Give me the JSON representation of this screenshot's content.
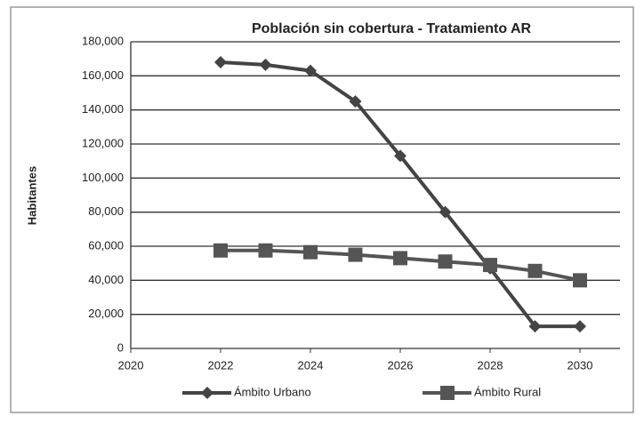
{
  "chart_data": {
    "type": "line",
    "title": "Población sin cobertura - Tratamiento AR",
    "ylabel": "Habitantes",
    "x": [
      2022,
      2023,
      2024,
      2025,
      2026,
      2027,
      2028,
      2029,
      2030
    ],
    "series": [
      {
        "name": "Ámbito Urbano",
        "color": "#444444",
        "marker": "diamond",
        "values": [
          168000,
          166500,
          163000,
          145000,
          113000,
          80000,
          47000,
          13000,
          13000
        ]
      },
      {
        "name": "Ámbito Rural",
        "color": "#555555",
        "marker": "square",
        "values": [
          57500,
          57500,
          56500,
          55000,
          53000,
          51000,
          49000,
          45500,
          40000
        ]
      }
    ],
    "xlim": [
      2020,
      2030
    ],
    "xticks": [
      2020,
      2022,
      2024,
      2026,
      2028,
      2030
    ],
    "ylim": [
      0,
      180000
    ],
    "yticks": [
      0,
      {
        "value": 20000,
        "label": "20,000"
      },
      {
        "value": 40000,
        "label": "40,000"
      },
      {
        "value": 60000,
        "label": "60,000"
      },
      {
        "value": 80000,
        "label": "80,000"
      },
      {
        "value": 100000,
        "label": "100,000"
      },
      {
        "value": 120000,
        "label": "120,000"
      },
      {
        "value": 140000,
        "label": "140,000"
      },
      {
        "value": 160000,
        "label": "160,000"
      },
      {
        "value": 180000,
        "label": "180,000"
      }
    ],
    "grid": true,
    "legend": "bottom"
  }
}
